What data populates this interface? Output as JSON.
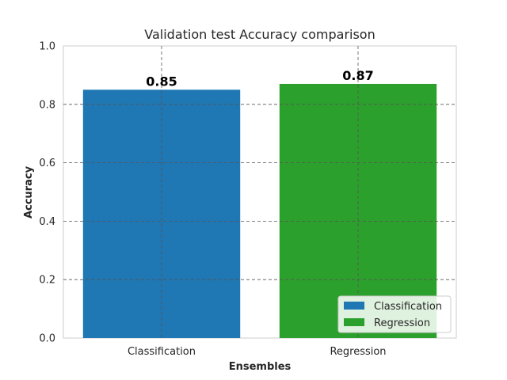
{
  "chart_data": {
    "type": "bar",
    "title": "Validation test Accuracy comparison",
    "xlabel": "Ensembles",
    "ylabel": "Accuracy",
    "categories": [
      "Classification",
      "Regression"
    ],
    "values": [
      0.85,
      0.87
    ],
    "data_labels": [
      "0.85",
      "0.87"
    ],
    "ylim": [
      0,
      1.0
    ],
    "yticks": [
      "0.0",
      "0.2",
      "0.4",
      "0.6",
      "0.8",
      "1.0"
    ],
    "ytick_values": [
      0,
      0.2,
      0.4,
      0.6,
      0.8,
      1.0
    ],
    "colors": [
      "#1f77b4",
      "#2ca02c"
    ],
    "grid": true,
    "legend": {
      "placement": "lower-right",
      "entries": [
        {
          "label": "Classification",
          "color": "#1f77b4"
        },
        {
          "label": "Regression",
          "color": "#2ca02c"
        }
      ]
    }
  }
}
